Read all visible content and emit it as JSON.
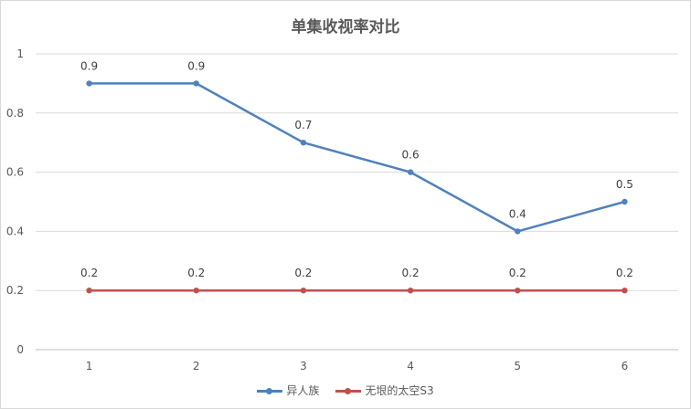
{
  "chart_data": {
    "type": "line",
    "title": "单集收视率对比",
    "categories": [
      "1",
      "2",
      "3",
      "4",
      "5",
      "6"
    ],
    "ylim": [
      0,
      1
    ],
    "y_ticks": [
      "0",
      "0.2",
      "0.4",
      "0.6",
      "0.8",
      "1"
    ],
    "grid": true,
    "legend_position": "bottom",
    "series": [
      {
        "name": "异人族",
        "values": [
          0.9,
          0.9,
          0.7,
          0.6,
          0.4,
          0.5
        ],
        "labels": [
          "0.9",
          "0.9",
          "0.7",
          "0.6",
          "0.4",
          "0.5"
        ],
        "color": "#4f81bd"
      },
      {
        "name": "无垠的太空S3",
        "values": [
          0.2,
          0.2,
          0.2,
          0.2,
          0.2,
          0.2
        ],
        "labels": [
          "0.2",
          "0.2",
          "0.2",
          "0.2",
          "0.2",
          "0.2"
        ],
        "color": "#c0504d"
      }
    ]
  }
}
